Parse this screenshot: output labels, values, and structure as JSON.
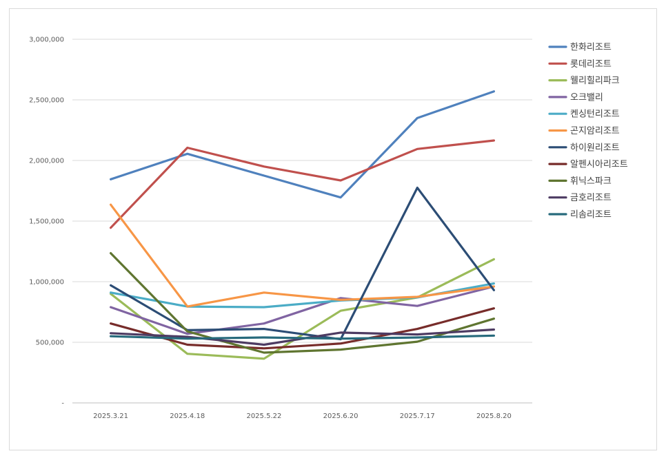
{
  "chart_data": {
    "type": "line",
    "title": "",
    "xlabel": "",
    "ylabel": "",
    "categories": [
      "2025.3.21",
      "2025.4.18",
      "2025.5.22",
      "2025.6.20",
      "2025.7.17",
      "2025.8.20"
    ],
    "ylim": [
      0,
      3000000
    ],
    "yticks": [
      0,
      500000,
      1000000,
      1500000,
      2000000,
      2500000,
      3000000
    ],
    "ytick_labels": [
      "-",
      "500,000",
      "1,000,000",
      "1,500,000",
      "2,000,000",
      "2,500,000",
      "3,000,000"
    ],
    "grid": true,
    "legend_position": "right",
    "series": [
      {
        "name": "한화리조트",
        "color": "#4f81bd",
        "values": [
          1845000,
          2055000,
          1875000,
          1695000,
          2350000,
          2570000
        ]
      },
      {
        "name": "롯데리조트",
        "color": "#c0504d",
        "values": [
          1445000,
          2105000,
          1950000,
          1835000,
          2095000,
          2165000
        ]
      },
      {
        "name": "웰리힐리파크",
        "color": "#9bbb59",
        "values": [
          900000,
          405000,
          365000,
          760000,
          870000,
          1185000
        ]
      },
      {
        "name": "오크밸리",
        "color": "#8064a2",
        "values": [
          790000,
          570000,
          655000,
          865000,
          800000,
          960000
        ]
      },
      {
        "name": "켄싱턴리조트",
        "color": "#4bacc6",
        "values": [
          910000,
          795000,
          790000,
          845000,
          870000,
          985000
        ]
      },
      {
        "name": "곤지암리조트",
        "color": "#f79646",
        "values": [
          1635000,
          795000,
          910000,
          850000,
          875000,
          960000
        ]
      },
      {
        "name": "하이원리조트",
        "color": "#2c4d75",
        "values": [
          970000,
          600000,
          610000,
          525000,
          1775000,
          930000
        ]
      },
      {
        "name": "알펜시아리조트",
        "color": "#772c2a",
        "values": [
          655000,
          480000,
          450000,
          490000,
          610000,
          780000
        ]
      },
      {
        "name": "휘닉스파크",
        "color": "#5f7530",
        "values": [
          1235000,
          590000,
          415000,
          440000,
          505000,
          695000
        ]
      },
      {
        "name": "금호리조트",
        "color": "#4d3b62",
        "values": [
          575000,
          545000,
          480000,
          580000,
          565000,
          605000
        ]
      },
      {
        "name": "리솜리조트",
        "color": "#276a7c",
        "values": [
          550000,
          530000,
          540000,
          530000,
          540000,
          555000
        ]
      }
    ]
  }
}
